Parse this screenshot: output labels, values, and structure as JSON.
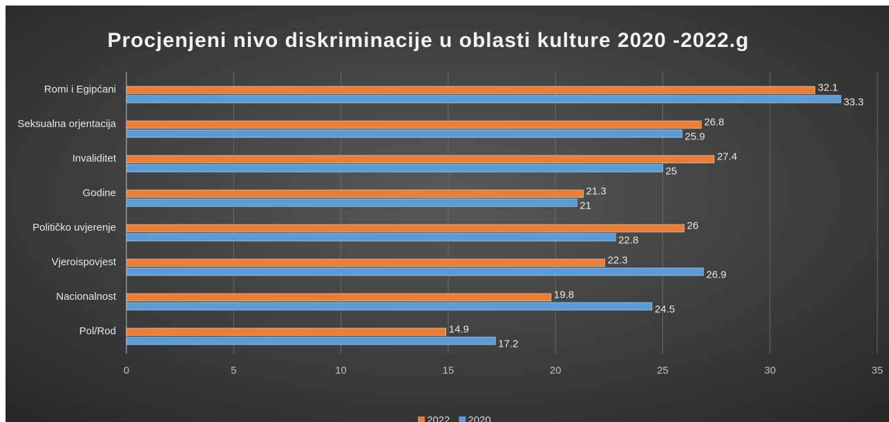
{
  "chart_data": {
    "type": "bar",
    "orientation": "horizontal",
    "title": "Procjenjeni nivo diskriminacije u oblasti kulture 2020 -2022.g",
    "categories": [
      "Romi i Egipćani",
      "Seksualna orjentacija",
      "Invaliditet",
      "Godine",
      "Političko uvjerenje",
      "Vjeroispovjest",
      "Nacionalnost",
      "Pol/Rod"
    ],
    "series": [
      {
        "name": "2022",
        "color": "#ed7d31",
        "values": [
          32.1,
          26.8,
          27.4,
          21.3,
          26,
          22.3,
          19.8,
          14.9
        ]
      },
      {
        "name": "2020",
        "color": "#5b9bd5",
        "values": [
          33.3,
          25.9,
          25,
          21,
          22.8,
          26.9,
          24.5,
          17.2
        ]
      }
    ],
    "xlim": [
      0,
      35
    ],
    "xticks": [
      0,
      5,
      10,
      15,
      20,
      25,
      30,
      35
    ],
    "grid": true,
    "legend": "bottom"
  }
}
